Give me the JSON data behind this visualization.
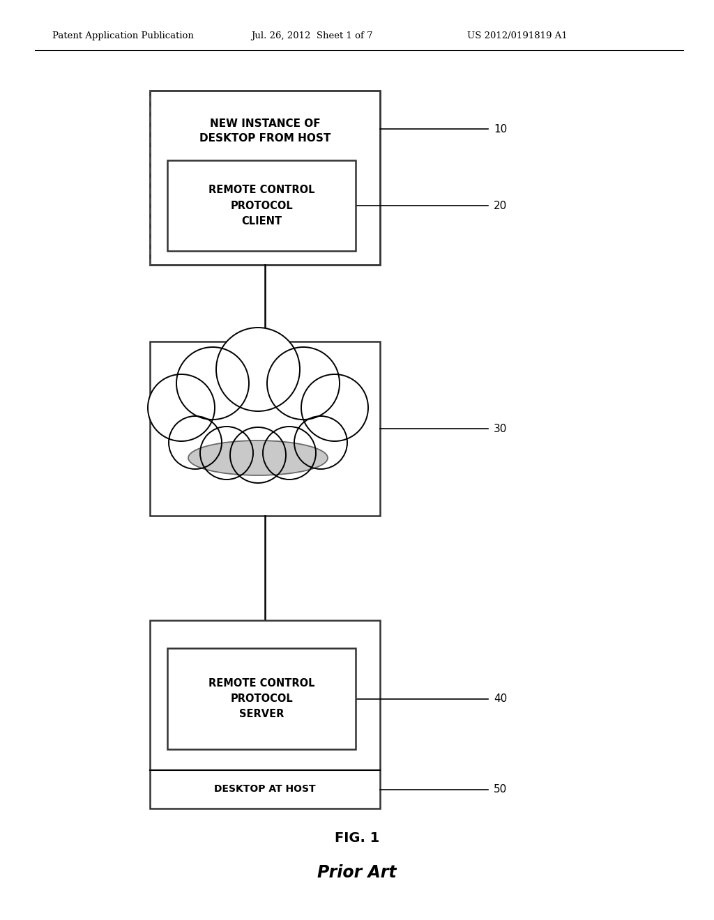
{
  "bg_color": "#ffffff",
  "header_text": "Patent Application Publication",
  "header_date": "Jul. 26, 2012  Sheet 1 of 7",
  "header_patent": "US 2012/0191819 A1",
  "fig_label": "FIG. 1",
  "fig_sublabel": "Prior Art",
  "box1_label": "NEW INSTANCE OF\nDESKTOP FROM HOST",
  "box2_label": "REMOTE CONTROL\nPROTOCOL\nCLIENT",
  "box3_label": "REMOTE CONTROL\nPROTOCOL\nSERVER",
  "box4_label": "DESKTOP AT HOST",
  "ref10": "10",
  "ref20": "20",
  "ref30": "30",
  "ref40": "40",
  "ref50": "50"
}
